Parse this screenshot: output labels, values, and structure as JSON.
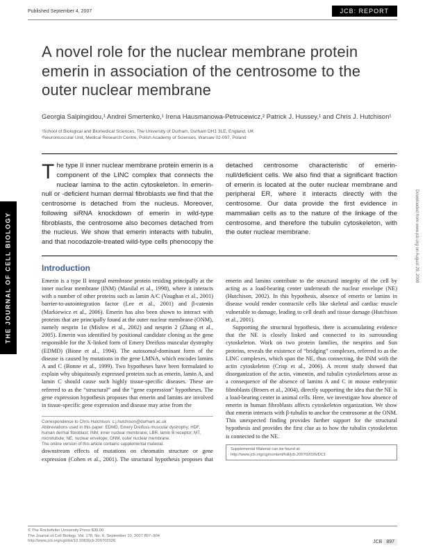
{
  "header": {
    "published": "Published September 4, 2007",
    "badge": "JCB: REPORT"
  },
  "title": "A novel role for the nuclear membrane protein emerin in association of the centrosome to the outer nuclear membrane",
  "authors_html": "Georgia Salpingidou,¹ Andrei Smertenko,¹ Irena Hausmanowa-Petrucewicz,² Patrick J. Hussey,¹ and Chris J. Hutchison¹",
  "affiliations": {
    "a1": "¹School of Biological and Biomedical Sciences, The University of Durham, Durham DH1 3LE, England, UK",
    "a2": "²Neuromuscular Unit, Medical Research Centre, Polish Academy of Sciences, Warsaw 02-097, Poland"
  },
  "abstract": {
    "dropcap": "T",
    "text": "he type II inner nuclear membrane protein emerin is a component of the LINC complex that connects the nuclear lamina to the actin cytoskeleton. In emerin-null or -deficient human dermal fibroblasts we find that the centrosome is detached from the nucleus. Moreover, following siRNA knockdown of emerin in wild-type fibroblasts, the centrosome also becomes detached from the nucleus. We show that emerin interacts with tubulin, and that nocodazole-treated wild-type cells phenocopy the detached centrosome characteristic of emerin-null/deficient cells. We also find that a significant fraction of emerin is located at the outer nuclear membrane and peripheral ER, where it interacts directly with the centrosome. Our data provide the first evidence in mammalian cells as to the nature of the linkage of the centrosome, and therefore the tubulin cytoskeleton, with the outer nuclear membrane."
  },
  "section": "Introduction",
  "body": {
    "p1": "Emerin is a type II integral membrane protein residing principally at the inner nuclear membrane (INM) (Manilal et al., 1998), where it interacts with a number of other proteins such as lamin A/C (Vaughan et al., 2001) barrier-to-autointegration factor (Lee et al., 2001) and β-catenin (Markiewicz et al., 2006). Emerin has also been shown to interact with proteins that are principally found at the outer nuclear membrane (ONM), namely nesprin 1α (Mislow et al., 2002) and nesprin 2 (Zhang et al., 2005). Emerin was identified by positional candidate cloning as the gene responsible for the X-linked form of Emery Dreifuss muscular dystrophy (EDMD) (Bione et al., 1994). The autosomal-dominant form of the disease is caused by mutations in the gene LMNA, which encodes lamins A and C (Bonne et al., 1999). Two hypotheses have been formulated to explain why ubiquitously expressed proteins such as emerin, lamin A, and lamin C should cause such highly tissue-specific diseases. These are referred to as the “structural” and the “gene expression” hypotheses. The gene expression hypothesis proposes that emerin and lamins are involved in tissue-specific gene expression and disease may arise from the",
    "p2": "downstream effects of mutations on chromatin structure or gene expression (Cohen et al., 2001). The structural hypothesis proposes that emerin and lamins contribute to the structural integrity of the cell by acting as a load-bearing center underneath the nuclear envelope (NE) (Hutchison, 2002). In this hypothesis, absence of emerin or lamins in disease would render contractile cells like skeletal and cardiac muscle vulnerable to damage, leading to cell death and tissue damage (Hutchison et al., 2001).",
    "p3": "Supporting the structural hypothesis, there is accumulating evidence that the NE is closely linked and connected to its surrounding cytoskeleton. Work on two protein families, the nesprins and Sun proteins, reveals the existence of “bridging” complexes, referred to as the LINC complexes, which span the NE, thus connecting, the INM with the actin cytoskeleton (Crisp et al., 2006). A recent study showed that disorganization of the actin, vimentin, and tubulin cytoskeletons arose as a consequence of the absence of lamins A and C in mouse embryonic fibroblasts (Broers et al., 2004), directly supporting the idea that the NE is a load-bearing center in animal cells. Here, we investigate how absence of emerin in human fibroblasts affects cytoskeleton organization. We show that emerin interacts with β-tubulin to anchor the centrosome at the ONM. This unexpected finding provides further support for the structural hypothesis and provides the first clue as to how the tubulin cytoskeleton is connected to the NE."
  },
  "correspondence": {
    "line1": "Correspondence to Chris Hutchison: c.j.hutchison@durham.ac.uk",
    "line2": "Abbreviations used in this paper: EDMD, Emery Dreifuss muscular dystrophy; HDF, human dermal fibroblast; INM, inner nuclear membrane; LBR, lamin B receptor; MT, microtubule; NE, nuclear envelope; ONM, outer nuclear membrane.",
    "line3": "The online version of this article contains supplemental material."
  },
  "supp": {
    "l1": "Supplemental Material can be found at:",
    "l2": "http://www.jcb.org/cgi/content/full/jcb.200702026/DC1"
  },
  "sidebar": "THE JOURNAL OF CELL BIOLOGY",
  "right_note": "Downloaded from www.jcb.org on August 29, 2008",
  "footer": {
    "copyright": "© The Rockefeller University Press   $30.00",
    "citation": "The Journal of Cell Biology, Vol. 178, No. 6, September 10, 2007 897–904",
    "doi": "http://www.jcb.org/cgi/doi/10.1083/jcb.200702026",
    "journal": "JCB",
    "page": "897"
  },
  "colors": {
    "heading_blue": "#3a5ba0",
    "text": "#222222",
    "muted": "#666666",
    "rule": "#888888",
    "badge_bg": "#000000"
  }
}
